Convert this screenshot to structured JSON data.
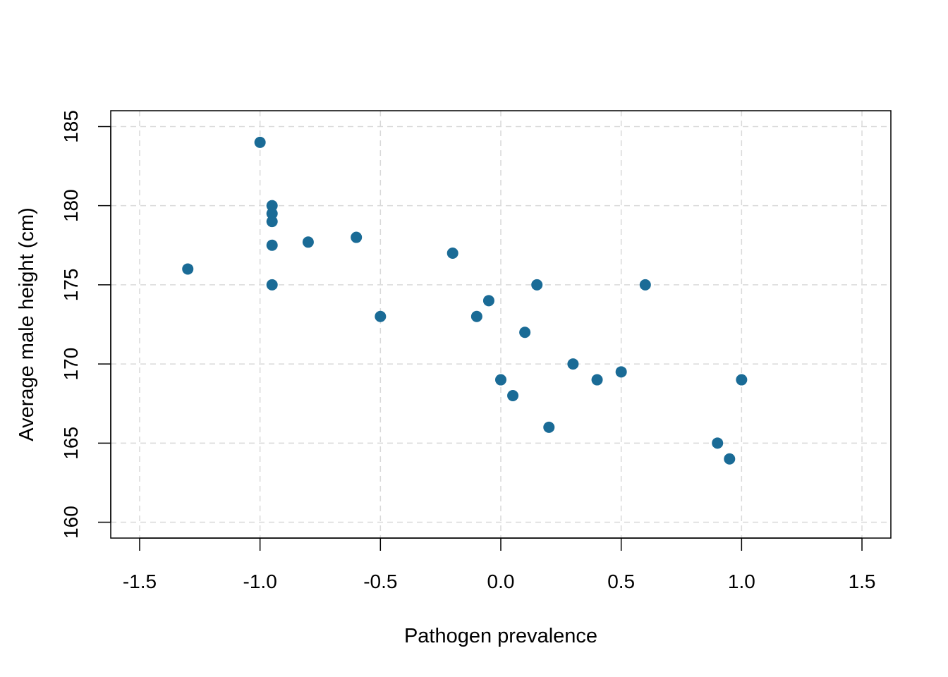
{
  "chart_data": {
    "type": "scatter",
    "title": "",
    "xlabel": "Pathogen prevalence",
    "ylabel": "Average male height (cm)",
    "xlim": [
      -1.62,
      1.62
    ],
    "ylim": [
      159,
      186
    ],
    "xticks": [
      -1.5,
      -1.0,
      -0.5,
      0.0,
      0.5,
      1.0,
      1.5
    ],
    "xtick_labels": [
      "-1.5",
      "-1.0",
      "-0.5",
      "0.0",
      "0.5",
      "1.0",
      "1.5"
    ],
    "yticks": [
      160,
      165,
      170,
      175,
      180,
      185
    ],
    "ytick_labels": [
      "160",
      "165",
      "170",
      "175",
      "180",
      "185"
    ],
    "grid": true,
    "point_color": "#1a6b96",
    "points": [
      {
        "x": -1.3,
        "y": 176
      },
      {
        "x": -1.0,
        "y": 184
      },
      {
        "x": -0.95,
        "y": 180
      },
      {
        "x": -0.95,
        "y": 179.5
      },
      {
        "x": -0.95,
        "y": 179
      },
      {
        "x": -0.95,
        "y": 177.5
      },
      {
        "x": -0.95,
        "y": 175
      },
      {
        "x": -0.8,
        "y": 177.7
      },
      {
        "x": -0.6,
        "y": 178
      },
      {
        "x": -0.5,
        "y": 173
      },
      {
        "x": -0.2,
        "y": 177
      },
      {
        "x": -0.1,
        "y": 173
      },
      {
        "x": -0.05,
        "y": 174
      },
      {
        "x": 0.0,
        "y": 169
      },
      {
        "x": 0.05,
        "y": 168
      },
      {
        "x": 0.1,
        "y": 172
      },
      {
        "x": 0.15,
        "y": 175
      },
      {
        "x": 0.2,
        "y": 166
      },
      {
        "x": 0.3,
        "y": 170
      },
      {
        "x": 0.4,
        "y": 169
      },
      {
        "x": 0.5,
        "y": 169.5
      },
      {
        "x": 0.6,
        "y": 175
      },
      {
        "x": 0.9,
        "y": 165
      },
      {
        "x": 0.95,
        "y": 164
      },
      {
        "x": 1.0,
        "y": 169
      }
    ]
  }
}
